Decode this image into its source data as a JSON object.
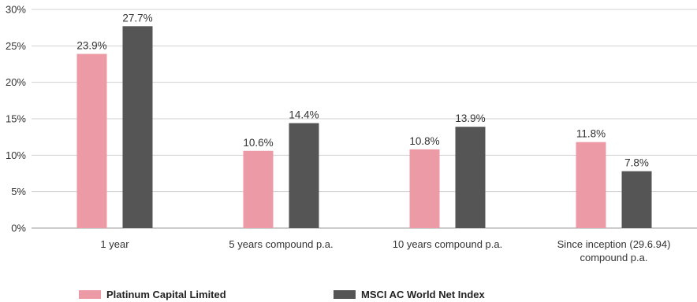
{
  "chart_data": {
    "type": "bar",
    "categories": [
      [
        "1 year"
      ],
      [
        "5 years compound p.a."
      ],
      [
        "10 years compound p.a."
      ],
      [
        "Since inception (29.6.94)",
        "compound p.a."
      ]
    ],
    "series": [
      {
        "name": "Platinum Capital Limited",
        "color": "#ec9aa6",
        "values": [
          23.9,
          10.6,
          10.8,
          11.8
        ],
        "labels": [
          "23.9%",
          "10.6%",
          "10.8%",
          "11.8%"
        ]
      },
      {
        "name": "MSCI AC World Net Index",
        "color": "#555555",
        "values": [
          27.7,
          14.4,
          13.9,
          7.8
        ],
        "labels": [
          "27.7%",
          "14.4%",
          "13.9%",
          "7.8%"
        ]
      }
    ],
    "y_ticks": [
      "0%",
      "5%",
      "10%",
      "15%",
      "20%",
      "25%",
      "30%"
    ],
    "ylim": [
      0,
      30
    ],
    "grid": true,
    "legend_position": "bottom"
  }
}
